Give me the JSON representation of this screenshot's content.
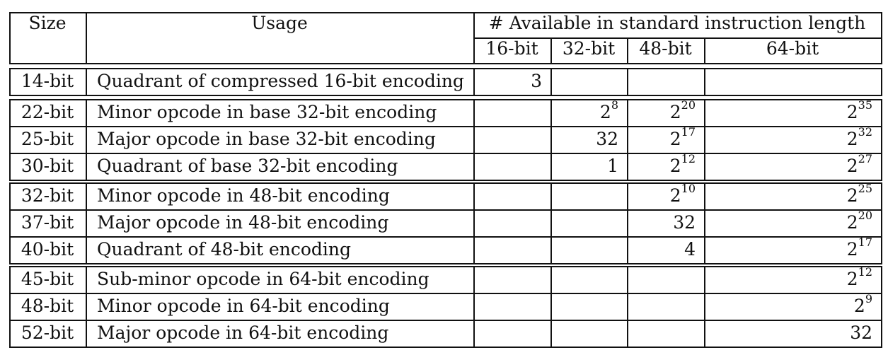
{
  "header": {
    "size": "Size",
    "usage": "Usage",
    "available": "# Available in standard instruction length",
    "lengths": [
      "16-bit",
      "32-bit",
      "48-bit",
      "64-bit"
    ]
  },
  "groups": [
    [
      {
        "size": "14-bit",
        "usage": "Quadrant of compressed 16-bit encoding",
        "vals": [
          {
            "b": "3"
          },
          null,
          null,
          null
        ]
      }
    ],
    [
      {
        "size": "22-bit",
        "usage": "Minor opcode in base 32-bit encoding",
        "vals": [
          null,
          {
            "b": "2",
            "e": "8"
          },
          {
            "b": "2",
            "e": "20"
          },
          {
            "b": "2",
            "e": "35"
          }
        ]
      },
      {
        "size": "25-bit",
        "usage": "Major opcode in base 32-bit encoding",
        "vals": [
          null,
          {
            "b": "32"
          },
          {
            "b": "2",
            "e": "17"
          },
          {
            "b": "2",
            "e": "32"
          }
        ]
      },
      {
        "size": "30-bit",
        "usage": "Quadrant of base 32-bit encoding",
        "vals": [
          null,
          {
            "b": "1"
          },
          {
            "b": "2",
            "e": "12"
          },
          {
            "b": "2",
            "e": "27"
          }
        ]
      }
    ],
    [
      {
        "size": "32-bit",
        "usage": "Minor opcode in 48-bit encoding",
        "vals": [
          null,
          null,
          {
            "b": "2",
            "e": "10"
          },
          {
            "b": "2",
            "e": "25"
          }
        ]
      },
      {
        "size": "37-bit",
        "usage": "Major opcode in 48-bit encoding",
        "vals": [
          null,
          null,
          {
            "b": "32"
          },
          {
            "b": "2",
            "e": "20"
          }
        ]
      },
      {
        "size": "40-bit",
        "usage": "Quadrant of 48-bit encoding",
        "vals": [
          null,
          null,
          {
            "b": "4"
          },
          {
            "b": "2",
            "e": "17"
          }
        ]
      }
    ],
    [
      {
        "size": "45-bit",
        "usage": "Sub-minor opcode in 64-bit encoding",
        "vals": [
          null,
          null,
          null,
          {
            "b": "2",
            "e": "12"
          }
        ]
      },
      {
        "size": "48-bit",
        "usage": "Minor opcode in 64-bit encoding",
        "vals": [
          null,
          null,
          null,
          {
            "b": "2",
            "e": "9"
          }
        ]
      },
      {
        "size": "52-bit",
        "usage": "Major opcode in 64-bit encoding",
        "vals": [
          null,
          null,
          null,
          {
            "b": "32"
          }
        ]
      }
    ]
  ]
}
